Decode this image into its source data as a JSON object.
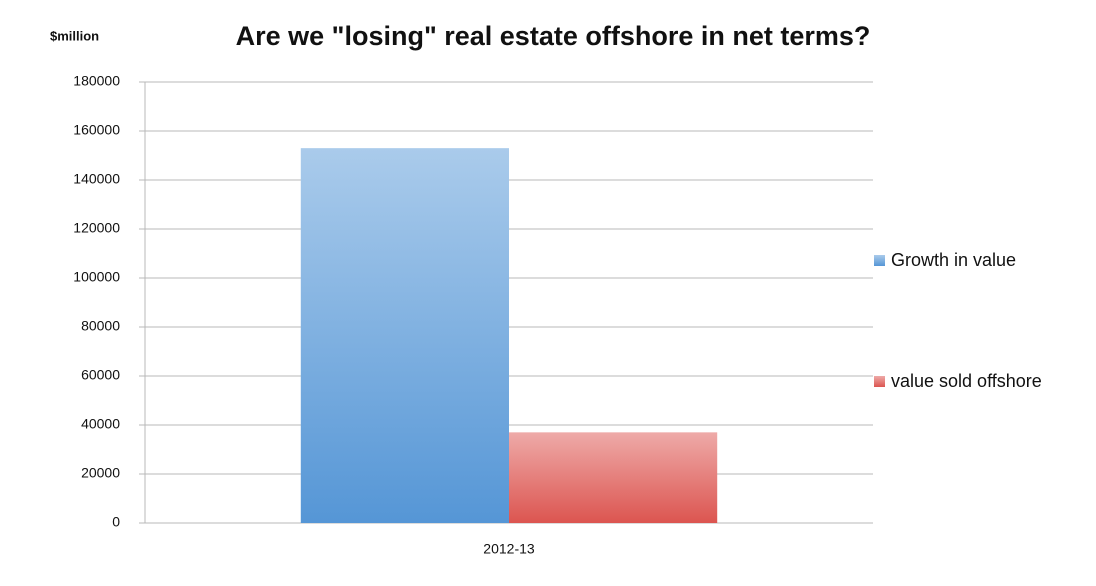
{
  "chart_data": {
    "type": "bar",
    "title": "Are we \"losing\" real estate offshore in net terms?",
    "y_label": "$million",
    "categories": [
      "2012-13"
    ],
    "series": [
      {
        "name": "Growth in value",
        "color": "#5596d6",
        "values": [
          153000
        ]
      },
      {
        "name": "value sold offshore",
        "color": "#dc5550",
        "values": [
          37000
        ]
      }
    ],
    "ylim": [
      0,
      180000
    ],
    "yticks": [
      0,
      20000,
      40000,
      60000,
      80000,
      100000,
      120000,
      140000,
      160000,
      180000
    ],
    "grid": true,
    "legend": "right"
  }
}
